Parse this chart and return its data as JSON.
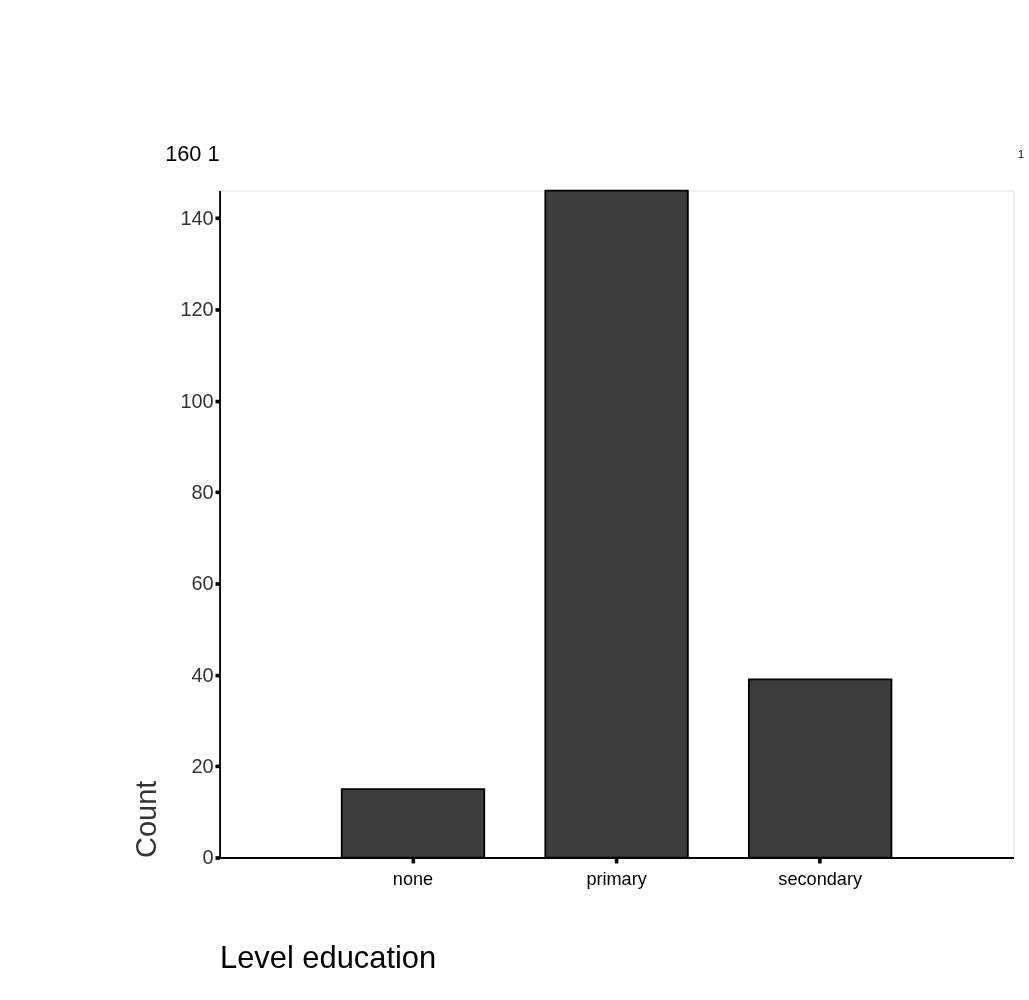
{
  "chart_data": {
    "type": "bar",
    "xlabel": "Level education",
    "ylabel": "Count",
    "categories": [
      "none",
      "primary",
      "secondary"
    ],
    "values": [
      15,
      146,
      39
    ],
    "color": "#3c3c3c",
    "ylim": [
      0,
      146
    ],
    "yticks": [
      0,
      20,
      40,
      60,
      80,
      100,
      120,
      140
    ],
    "grid": false,
    "annotations": [
      "160 1",
      "1"
    ]
  }
}
